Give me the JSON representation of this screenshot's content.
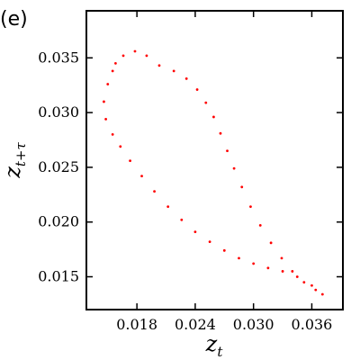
{
  "panel_label": "(e)",
  "chart_data": {
    "type": "scatter",
    "title": "",
    "xlabel": {
      "base": "z",
      "sub": "t"
    },
    "ylabel": {
      "base": "z",
      "sub": "t+τ"
    },
    "xlim": [
      0.0128,
      0.0392
    ],
    "ylim": [
      0.012,
      0.0393
    ],
    "xticks": [
      0.018,
      0.024,
      0.03,
      0.036
    ],
    "xtick_labels": [
      "0.018",
      "0.024",
      "0.030",
      "0.036"
    ],
    "yticks": [
      0.015,
      0.02,
      0.025,
      0.03,
      0.035
    ],
    "ytick_labels": [
      "0.015",
      "0.020",
      "0.025",
      "0.030",
      "0.035"
    ],
    "grid": false,
    "legend": "none",
    "marker_color": "#ff0000",
    "series": [
      {
        "values_description_free": true,
        "points": [
          [
            0.0158,
            0.0345
          ],
          [
            0.0166,
            0.0352
          ],
          [
            0.0178,
            0.0356
          ],
          [
            0.019,
            0.0352
          ],
          [
            0.0203,
            0.0343
          ],
          [
            0.0218,
            0.0338
          ],
          [
            0.0231,
            0.0331
          ],
          [
            0.0242,
            0.0321
          ],
          [
            0.0251,
            0.0309
          ],
          [
            0.0259,
            0.0296
          ],
          [
            0.0266,
            0.0281
          ],
          [
            0.0273,
            0.0265
          ],
          [
            0.028,
            0.0249
          ],
          [
            0.0288,
            0.0232
          ],
          [
            0.0297,
            0.0214
          ],
          [
            0.0307,
            0.0197
          ],
          [
            0.0318,
            0.0181
          ],
          [
            0.0329,
            0.0167
          ],
          [
            0.034,
            0.0155
          ],
          [
            0.0352,
            0.0145
          ],
          [
            0.0364,
            0.0138
          ],
          [
            0.0371,
            0.0134
          ],
          [
            0.036,
            0.0142
          ],
          [
            0.0345,
            0.015
          ],
          [
            0.033,
            0.0155
          ],
          [
            0.0315,
            0.0158
          ],
          [
            0.03,
            0.0162
          ],
          [
            0.0285,
            0.0167
          ],
          [
            0.027,
            0.0174
          ],
          [
            0.0255,
            0.0182
          ],
          [
            0.024,
            0.0191
          ],
          [
            0.0226,
            0.0202
          ],
          [
            0.0212,
            0.0214
          ],
          [
            0.0198,
            0.0228
          ],
          [
            0.0185,
            0.0242
          ],
          [
            0.0173,
            0.0256
          ],
          [
            0.0163,
            0.0269
          ],
          [
            0.0155,
            0.028
          ],
          [
            0.0148,
            0.0294
          ],
          [
            0.0146,
            0.031
          ],
          [
            0.015,
            0.0326
          ],
          [
            0.0155,
            0.0338
          ]
        ]
      }
    ]
  }
}
